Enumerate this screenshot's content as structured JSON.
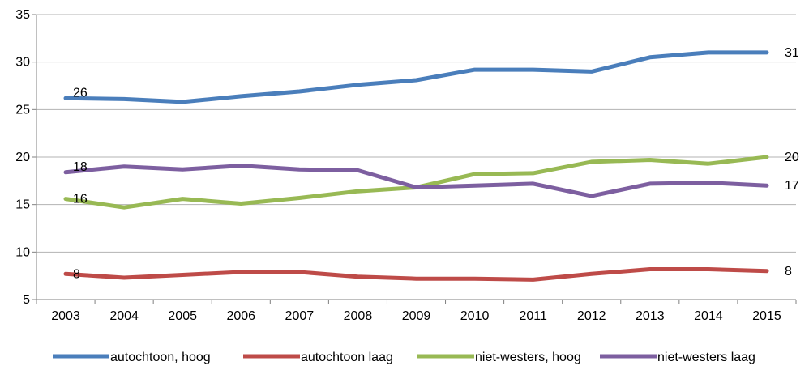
{
  "chart_data": {
    "type": "line",
    "title": "",
    "xlabel": "",
    "ylabel": "",
    "x": [
      "2003",
      "2004",
      "2005",
      "2006",
      "2007",
      "2008",
      "2009",
      "2010",
      "2011",
      "2012",
      "2013",
      "2014",
      "2015"
    ],
    "ylim": [
      5,
      35
    ],
    "yticks": [
      5,
      10,
      15,
      20,
      25,
      30,
      35
    ],
    "grid": true,
    "legend_position": "bottom",
    "series": [
      {
        "name": "autochtoon, hoog",
        "color": "#4a7ebb",
        "values": [
          26.2,
          26.1,
          25.8,
          26.4,
          26.9,
          27.6,
          28.1,
          29.2,
          29.2,
          29.0,
          30.5,
          31.0,
          31.0
        ],
        "labels": [
          {
            "index": 0,
            "text": "26"
          },
          {
            "index": 12,
            "text": "31"
          }
        ]
      },
      {
        "name": "autochtoon laag",
        "color": "#be4b48",
        "values": [
          7.7,
          7.3,
          7.6,
          7.9,
          7.9,
          7.4,
          7.2,
          7.2,
          7.1,
          7.7,
          8.2,
          8.2,
          8.0
        ],
        "labels": [
          {
            "index": 0,
            "text": "8"
          },
          {
            "index": 12,
            "text": "8"
          }
        ]
      },
      {
        "name": "niet-westers, hoog",
        "color": "#98b954",
        "values": [
          15.6,
          14.7,
          15.6,
          15.1,
          15.7,
          16.4,
          16.8,
          18.2,
          18.3,
          19.5,
          19.7,
          19.3,
          20.0
        ],
        "labels": [
          {
            "index": 0,
            "text": "16"
          },
          {
            "index": 12,
            "text": "20"
          }
        ]
      },
      {
        "name": "niet-westers laag",
        "color": "#7d5fa0",
        "values": [
          18.4,
          19.0,
          18.7,
          19.1,
          18.7,
          18.6,
          16.8,
          17.0,
          17.2,
          15.9,
          17.2,
          17.3,
          17.0
        ],
        "labels": [
          {
            "index": 0,
            "text": "18"
          },
          {
            "index": 12,
            "text": "17"
          }
        ]
      }
    ]
  }
}
